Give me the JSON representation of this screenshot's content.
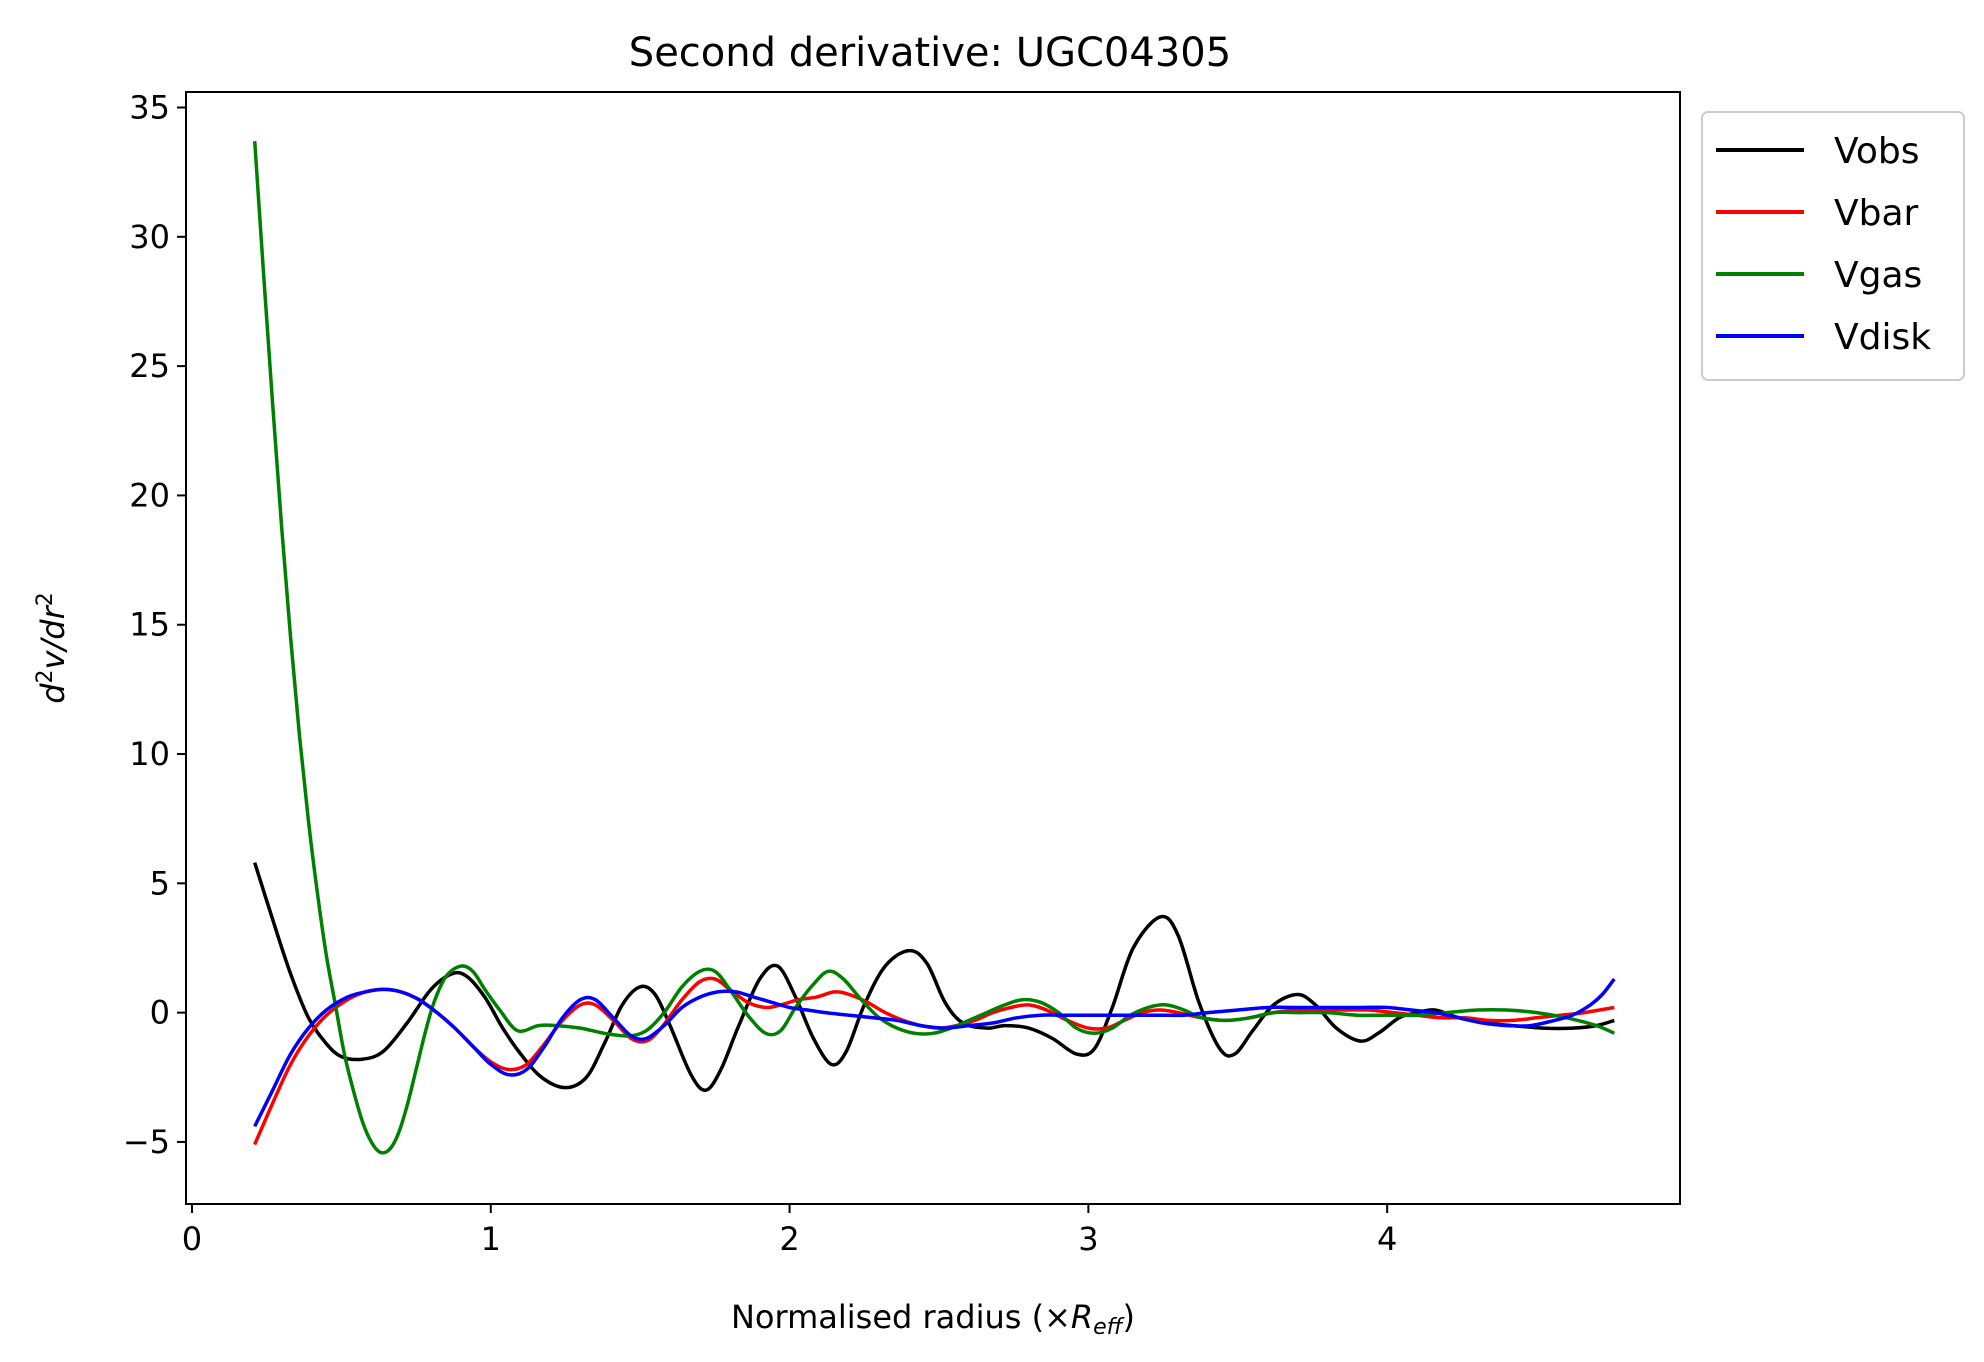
{
  "chart_data": {
    "type": "line",
    "title": "Second derivative: UGC04305",
    "xlabel": {
      "prefix": "Normalised radius (×",
      "var": "R",
      "sub": "eff",
      "suffix": ")"
    },
    "ylabel": {
      "d": "d",
      "sup1": "2",
      "mid": "v/dr",
      "sup2": "2"
    },
    "xlim": [
      -0.02,
      4.98
    ],
    "ylim": [
      -7.4,
      35.6
    ],
    "xticks": [
      0,
      1,
      2,
      3,
      4
    ],
    "yticks": [
      -5,
      0,
      5,
      10,
      15,
      20,
      25,
      30,
      35
    ],
    "ytick_labels": [
      "−5",
      "0",
      "5",
      "10",
      "15",
      "20",
      "25",
      "30",
      "35"
    ],
    "grid": false,
    "legend_position": "outside-top-right",
    "series": [
      {
        "name": "Vobs",
        "color": "#000000",
        "points": [
          [
            0.21,
            5.8
          ],
          [
            0.27,
            3.6
          ],
          [
            0.33,
            1.5
          ],
          [
            0.39,
            -0.2
          ],
          [
            0.45,
            -1.2
          ],
          [
            0.5,
            -1.7
          ],
          [
            0.57,
            -1.8
          ],
          [
            0.64,
            -1.5
          ],
          [
            0.72,
            -0.4
          ],
          [
            0.8,
            0.9
          ],
          [
            0.87,
            1.5
          ],
          [
            0.92,
            1.4
          ],
          [
            0.98,
            0.6
          ],
          [
            1.04,
            -0.6
          ],
          [
            1.1,
            -1.6
          ],
          [
            1.17,
            -2.5
          ],
          [
            1.25,
            -2.9
          ],
          [
            1.32,
            -2.5
          ],
          [
            1.38,
            -1.2
          ],
          [
            1.44,
            0.3
          ],
          [
            1.5,
            1.0
          ],
          [
            1.55,
            0.7
          ],
          [
            1.6,
            -0.5
          ],
          [
            1.67,
            -2.4
          ],
          [
            1.72,
            -3.0
          ],
          [
            1.77,
            -2.2
          ],
          [
            1.83,
            -0.5
          ],
          [
            1.9,
            1.3
          ],
          [
            1.96,
            1.8
          ],
          [
            2.02,
            0.6
          ],
          [
            2.08,
            -1.0
          ],
          [
            2.14,
            -2.0
          ],
          [
            2.19,
            -1.5
          ],
          [
            2.25,
            0.3
          ],
          [
            2.32,
            1.8
          ],
          [
            2.4,
            2.4
          ],
          [
            2.46,
            1.9
          ],
          [
            2.52,
            0.4
          ],
          [
            2.58,
            -0.4
          ],
          [
            2.66,
            -0.6
          ],
          [
            2.72,
            -0.5
          ],
          [
            2.8,
            -0.6
          ],
          [
            2.88,
            -1.0
          ],
          [
            2.96,
            -1.6
          ],
          [
            3.02,
            -1.4
          ],
          [
            3.08,
            0.2
          ],
          [
            3.15,
            2.5
          ],
          [
            3.24,
            3.7
          ],
          [
            3.3,
            3.0
          ],
          [
            3.37,
            0.4
          ],
          [
            3.44,
            -1.4
          ],
          [
            3.49,
            -1.6
          ],
          [
            3.55,
            -0.7
          ],
          [
            3.62,
            0.3
          ],
          [
            3.7,
            0.7
          ],
          [
            3.76,
            0.3
          ],
          [
            3.83,
            -0.6
          ],
          [
            3.91,
            -1.1
          ],
          [
            3.97,
            -0.8
          ],
          [
            4.04,
            -0.2
          ],
          [
            4.1,
            0.0
          ],
          [
            4.16,
            0.1
          ],
          [
            4.24,
            -0.2
          ],
          [
            4.33,
            -0.4
          ],
          [
            4.42,
            -0.5
          ],
          [
            4.52,
            -0.6
          ],
          [
            4.62,
            -0.6
          ],
          [
            4.7,
            -0.5
          ],
          [
            4.76,
            -0.3
          ]
        ]
      },
      {
        "name": "Vbar",
        "color": "#ff0000",
        "points": [
          [
            0.21,
            -5.1
          ],
          [
            0.27,
            -3.5
          ],
          [
            0.33,
            -2.0
          ],
          [
            0.39,
            -0.9
          ],
          [
            0.45,
            -0.1
          ],
          [
            0.52,
            0.5
          ],
          [
            0.58,
            0.8
          ],
          [
            0.64,
            0.9
          ],
          [
            0.7,
            0.8
          ],
          [
            0.76,
            0.5
          ],
          [
            0.82,
            0.0
          ],
          [
            0.88,
            -0.6
          ],
          [
            0.94,
            -1.3
          ],
          [
            1.0,
            -1.9
          ],
          [
            1.06,
            -2.2
          ],
          [
            1.12,
            -2.0
          ],
          [
            1.18,
            -1.2
          ],
          [
            1.24,
            -0.3
          ],
          [
            1.3,
            0.3
          ],
          [
            1.35,
            0.3
          ],
          [
            1.41,
            -0.3
          ],
          [
            1.47,
            -1.0
          ],
          [
            1.52,
            -1.1
          ],
          [
            1.57,
            -0.6
          ],
          [
            1.64,
            0.5
          ],
          [
            1.7,
            1.2
          ],
          [
            1.75,
            1.3
          ],
          [
            1.8,
            0.9
          ],
          [
            1.86,
            0.4
          ],
          [
            1.92,
            0.2
          ],
          [
            1.97,
            0.3
          ],
          [
            2.03,
            0.5
          ],
          [
            2.09,
            0.6
          ],
          [
            2.15,
            0.8
          ],
          [
            2.2,
            0.7
          ],
          [
            2.26,
            0.4
          ],
          [
            2.32,
            0.0
          ],
          [
            2.38,
            -0.3
          ],
          [
            2.44,
            -0.5
          ],
          [
            2.5,
            -0.6
          ],
          [
            2.56,
            -0.5
          ],
          [
            2.62,
            -0.3
          ],
          [
            2.68,
            0.0
          ],
          [
            2.74,
            0.2
          ],
          [
            2.8,
            0.3
          ],
          [
            2.86,
            0.1
          ],
          [
            2.93,
            -0.3
          ],
          [
            3.0,
            -0.6
          ],
          [
            3.06,
            -0.6
          ],
          [
            3.12,
            -0.3
          ],
          [
            3.18,
            0.0
          ],
          [
            3.24,
            0.1
          ],
          [
            3.3,
            0.0
          ],
          [
            3.38,
            -0.2
          ],
          [
            3.46,
            -0.3
          ],
          [
            3.54,
            -0.2
          ],
          [
            3.62,
            0.0
          ],
          [
            3.7,
            0.1
          ],
          [
            3.78,
            0.1
          ],
          [
            3.86,
            0.1
          ],
          [
            3.94,
            0.1
          ],
          [
            4.02,
            0.0
          ],
          [
            4.1,
            -0.1
          ],
          [
            4.18,
            -0.2
          ],
          [
            4.26,
            -0.2
          ],
          [
            4.34,
            -0.3
          ],
          [
            4.42,
            -0.3
          ],
          [
            4.5,
            -0.2
          ],
          [
            4.58,
            -0.1
          ],
          [
            4.66,
            0.0
          ],
          [
            4.76,
            0.2
          ]
        ]
      },
      {
        "name": "Vgas",
        "color": "#008000",
        "points": [
          [
            0.21,
            33.7
          ],
          [
            0.24,
            28.5
          ],
          [
            0.27,
            23.5
          ],
          [
            0.3,
            18.8
          ],
          [
            0.33,
            14.5
          ],
          [
            0.36,
            10.7
          ],
          [
            0.39,
            7.4
          ],
          [
            0.42,
            4.6
          ],
          [
            0.45,
            2.2
          ],
          [
            0.48,
            0.3
          ],
          [
            0.51,
            -1.6
          ],
          [
            0.54,
            -3.0
          ],
          [
            0.57,
            -4.2
          ],
          [
            0.6,
            -5.0
          ],
          [
            0.63,
            -5.4
          ],
          [
            0.66,
            -5.3
          ],
          [
            0.69,
            -4.7
          ],
          [
            0.72,
            -3.6
          ],
          [
            0.75,
            -2.2
          ],
          [
            0.78,
            -0.8
          ],
          [
            0.81,
            0.4
          ],
          [
            0.85,
            1.4
          ],
          [
            0.9,
            1.8
          ],
          [
            0.94,
            1.6
          ],
          [
            0.98,
            0.9
          ],
          [
            1.03,
            0.1
          ],
          [
            1.09,
            -0.7
          ],
          [
            1.16,
            -0.5
          ],
          [
            1.22,
            -0.5
          ],
          [
            1.3,
            -0.6
          ],
          [
            1.38,
            -0.8
          ],
          [
            1.46,
            -0.9
          ],
          [
            1.52,
            -0.7
          ],
          [
            1.58,
            0.0
          ],
          [
            1.64,
            1.0
          ],
          [
            1.7,
            1.6
          ],
          [
            1.75,
            1.6
          ],
          [
            1.8,
            0.9
          ],
          [
            1.86,
            -0.1
          ],
          [
            1.92,
            -0.8
          ],
          [
            1.97,
            -0.7
          ],
          [
            2.02,
            0.2
          ],
          [
            2.08,
            1.1
          ],
          [
            2.13,
            1.6
          ],
          [
            2.18,
            1.3
          ],
          [
            2.24,
            0.5
          ],
          [
            2.3,
            -0.2
          ],
          [
            2.36,
            -0.6
          ],
          [
            2.42,
            -0.8
          ],
          [
            2.48,
            -0.8
          ],
          [
            2.54,
            -0.6
          ],
          [
            2.6,
            -0.3
          ],
          [
            2.66,
            0.0
          ],
          [
            2.72,
            0.3
          ],
          [
            2.78,
            0.5
          ],
          [
            2.84,
            0.4
          ],
          [
            2.9,
            0.0
          ],
          [
            2.96,
            -0.6
          ],
          [
            3.02,
            -0.8
          ],
          [
            3.08,
            -0.6
          ],
          [
            3.14,
            -0.1
          ],
          [
            3.2,
            0.2
          ],
          [
            3.26,
            0.3
          ],
          [
            3.32,
            0.1
          ],
          [
            3.38,
            -0.2
          ],
          [
            3.46,
            -0.3
          ],
          [
            3.54,
            -0.2
          ],
          [
            3.62,
            0.0
          ],
          [
            3.7,
            0.0
          ],
          [
            3.8,
            0.0
          ],
          [
            3.9,
            -0.1
          ],
          [
            4.0,
            -0.1
          ],
          [
            4.1,
            -0.1
          ],
          [
            4.2,
            0.0
          ],
          [
            4.3,
            0.1
          ],
          [
            4.4,
            0.1
          ],
          [
            4.5,
            0.0
          ],
          [
            4.6,
            -0.2
          ],
          [
            4.7,
            -0.5
          ],
          [
            4.76,
            -0.8
          ]
        ]
      },
      {
        "name": "Vdisk",
        "color": "#0000ff",
        "points": [
          [
            0.21,
            -4.4
          ],
          [
            0.27,
            -3.0
          ],
          [
            0.33,
            -1.6
          ],
          [
            0.39,
            -0.6
          ],
          [
            0.45,
            0.1
          ],
          [
            0.52,
            0.6
          ],
          [
            0.58,
            0.8
          ],
          [
            0.64,
            0.9
          ],
          [
            0.7,
            0.8
          ],
          [
            0.76,
            0.5
          ],
          [
            0.82,
            0.0
          ],
          [
            0.88,
            -0.6
          ],
          [
            0.94,
            -1.3
          ],
          [
            1.0,
            -2.0
          ],
          [
            1.06,
            -2.4
          ],
          [
            1.12,
            -2.2
          ],
          [
            1.18,
            -1.3
          ],
          [
            1.24,
            -0.2
          ],
          [
            1.3,
            0.5
          ],
          [
            1.35,
            0.5
          ],
          [
            1.41,
            -0.2
          ],
          [
            1.47,
            -0.9
          ],
          [
            1.52,
            -1.0
          ],
          [
            1.58,
            -0.5
          ],
          [
            1.64,
            0.2
          ],
          [
            1.7,
            0.6
          ],
          [
            1.76,
            0.8
          ],
          [
            1.82,
            0.8
          ],
          [
            1.88,
            0.6
          ],
          [
            1.94,
            0.4
          ],
          [
            2.0,
            0.2
          ],
          [
            2.06,
            0.1
          ],
          [
            2.12,
            0.0
          ],
          [
            2.2,
            -0.1
          ],
          [
            2.28,
            -0.2
          ],
          [
            2.36,
            -0.3
          ],
          [
            2.44,
            -0.5
          ],
          [
            2.52,
            -0.6
          ],
          [
            2.6,
            -0.5
          ],
          [
            2.68,
            -0.4
          ],
          [
            2.76,
            -0.2
          ],
          [
            2.84,
            -0.1
          ],
          [
            2.92,
            -0.1
          ],
          [
            3.0,
            -0.1
          ],
          [
            3.08,
            -0.1
          ],
          [
            3.16,
            -0.1
          ],
          [
            3.24,
            -0.1
          ],
          [
            3.32,
            -0.1
          ],
          [
            3.4,
            0.0
          ],
          [
            3.5,
            0.1
          ],
          [
            3.6,
            0.2
          ],
          [
            3.7,
            0.2
          ],
          [
            3.8,
            0.2
          ],
          [
            3.9,
            0.2
          ],
          [
            4.0,
            0.2
          ],
          [
            4.08,
            0.1
          ],
          [
            4.16,
            0.0
          ],
          [
            4.24,
            -0.2
          ],
          [
            4.32,
            -0.4
          ],
          [
            4.4,
            -0.5
          ],
          [
            4.48,
            -0.5
          ],
          [
            4.56,
            -0.3
          ],
          [
            4.62,
            -0.1
          ],
          [
            4.68,
            0.3
          ],
          [
            4.72,
            0.7
          ],
          [
            4.76,
            1.3
          ]
        ]
      }
    ]
  }
}
